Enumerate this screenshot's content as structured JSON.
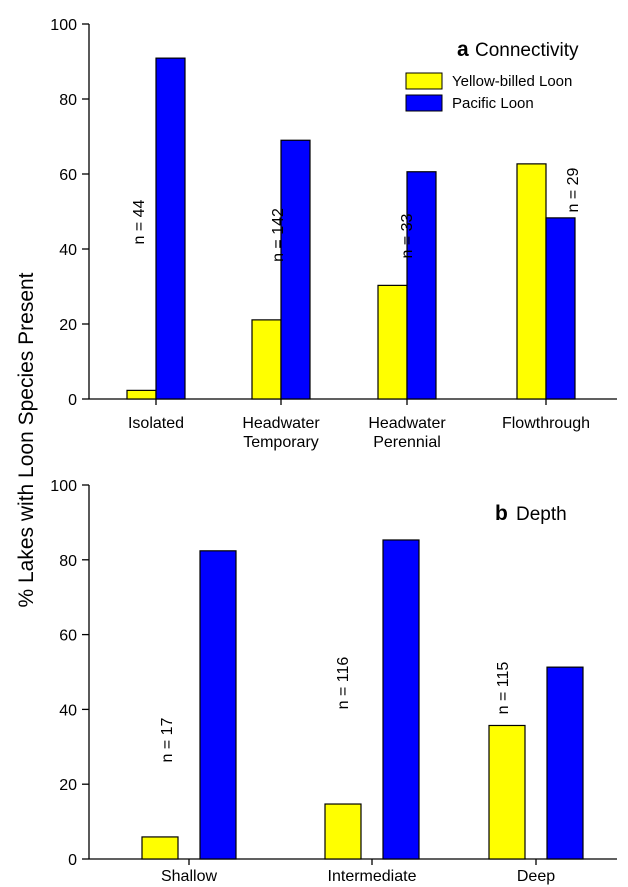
{
  "ylabel": "% Lakes with Loon Species Present",
  "colors": {
    "yellow_billed": "#ffff00",
    "pacific": "#0000ff",
    "outline": "#000000"
  },
  "chart_data": [
    {
      "type": "bar",
      "panel_letter": "a",
      "title": "Connectivity",
      "ylim": [
        0,
        100
      ],
      "yticks": [
        "0",
        "20",
        "40",
        "60",
        "80",
        "100"
      ],
      "categories": [
        [
          "Isolated"
        ],
        [
          "Headwater",
          "Temporary"
        ],
        [
          "Headwater",
          "Perennial"
        ],
        [
          "Flowthrough"
        ]
      ],
      "n_labels": [
        "n = 44",
        "n = 142",
        "n = 33",
        "n = 29"
      ],
      "legend": {
        "placement": "top-right",
        "entries": [
          "Yellow-billed Loon",
          "Pacific Loon"
        ]
      },
      "series": [
        {
          "name": "Yellow-billed Loon",
          "color": "#ffff00",
          "values": [
            2.3,
            21.1,
            30.3,
            62.7
          ]
        },
        {
          "name": "Pacific Loon",
          "color": "#0000ff",
          "values": [
            90.9,
            69.0,
            60.6,
            48.3
          ]
        }
      ]
    },
    {
      "type": "bar",
      "panel_letter": "b",
      "title": "Depth",
      "ylim": [
        0,
        100
      ],
      "yticks": [
        "0",
        "20",
        "40",
        "60",
        "80",
        "100"
      ],
      "categories": [
        [
          "Shallow"
        ],
        [
          "Intermediate"
        ],
        [
          "Deep"
        ]
      ],
      "n_labels": [
        "n = 17",
        "n = 116",
        "n = 115"
      ],
      "series": [
        {
          "name": "Yellow-billed Loon",
          "color": "#ffff00",
          "values": [
            5.9,
            14.7,
            35.7
          ]
        },
        {
          "name": "Pacific Loon",
          "color": "#0000ff",
          "values": [
            82.4,
            85.3,
            51.3
          ]
        }
      ]
    }
  ]
}
